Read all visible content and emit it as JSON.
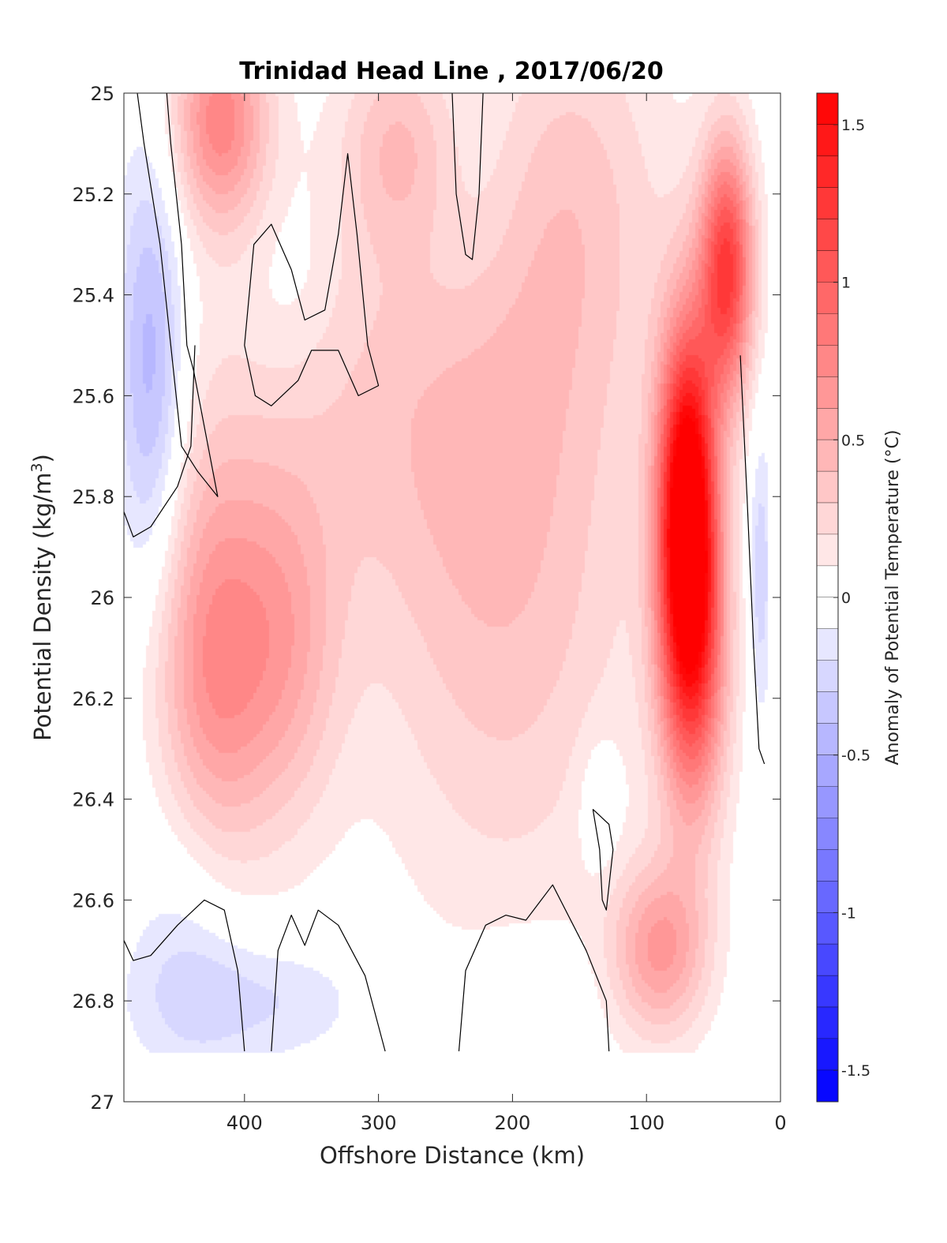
{
  "chart_data": {
    "type": "heatmap",
    "title": "Trinidad Head Line , 2017/06/20",
    "xlabel": "Offshore Distance (km)",
    "ylabel_main": "Potential Density (kg/m",
    "ylabel_sup": "3",
    "ylabel_close": ")",
    "colorbar_label": "Anomaly of Potential Temperature (°C)",
    "x_axis": {
      "reversed": true,
      "lim": [
        0,
        490
      ],
      "ticks": [
        400,
        300,
        200,
        100,
        0
      ],
      "tick_labels": [
        "400",
        "300",
        "200",
        "100",
        "0"
      ]
    },
    "y_axis": {
      "reversed": true,
      "lim": [
        25,
        27
      ],
      "ticks": [
        25,
        25.2,
        25.4,
        25.6,
        25.8,
        26,
        26.2,
        26.4,
        26.6,
        26.8,
        27
      ],
      "tick_labels": [
        "25",
        "25.2",
        "25.4",
        "25.6",
        "25.8",
        "26",
        "26.2",
        "26.4",
        "26.6",
        "26.8",
        "27"
      ]
    },
    "colorbar": {
      "lim": [
        -1.6,
        1.6
      ],
      "ticks": [
        1.5,
        1,
        0.5,
        0,
        -0.5,
        -1,
        -1.5
      ],
      "tick_labels": [
        "1.5",
        "1",
        "0.5",
        "0",
        "-0.5",
        "-1",
        "-1.5"
      ],
      "level_step": 0.1,
      "colormap": "blue-white-red",
      "color_min": "#0000ff",
      "color_mid": "#ffffff",
      "color_max": "#ff0000"
    },
    "data_extent": {
      "x_range": [
        10,
        490
      ],
      "y_range": [
        25,
        26.9
      ]
    },
    "anomaly_features": [
      {
        "x": 70,
        "y": 25.8,
        "value": 1.6,
        "sx": 15,
        "sy": 0.25
      },
      {
        "x": 65,
        "y": 26.1,
        "value": 1.0,
        "sx": 18,
        "sy": 0.25
      },
      {
        "x": 40,
        "y": 25.35,
        "value": 1.2,
        "sx": 14,
        "sy": 0.18
      },
      {
        "x": 90,
        "y": 26.7,
        "value": 0.6,
        "sx": 25,
        "sy": 0.12
      },
      {
        "x": 425,
        "y": 26.15,
        "value": 0.65,
        "sx": 30,
        "sy": 0.3
      },
      {
        "x": 418,
        "y": 25.05,
        "value": 0.75,
        "sx": 25,
        "sy": 0.15
      },
      {
        "x": 370,
        "y": 26.1,
        "value": 0.45,
        "sx": 30,
        "sy": 0.25
      },
      {
        "x": 205,
        "y": 26.0,
        "value": 0.35,
        "sx": 70,
        "sy": 0.45
      },
      {
        "x": 155,
        "y": 25.2,
        "value": 0.3,
        "sx": 50,
        "sy": 0.3
      },
      {
        "x": 300,
        "y": 25.6,
        "value": 0.25,
        "sx": 100,
        "sy": 0.3
      },
      {
        "x": 285,
        "y": 25.1,
        "value": 0.35,
        "sx": 30,
        "sy": 0.15
      },
      {
        "x": 470,
        "y": 25.55,
        "value": -0.5,
        "sx": 18,
        "sy": 0.3
      },
      {
        "x": 365,
        "y": 25.4,
        "value": -0.1,
        "sx": 25,
        "sy": 0.15
      },
      {
        "x": 230,
        "y": 25.2,
        "value": -0.1,
        "sx": 30,
        "sy": 0.2
      },
      {
        "x": 135,
        "y": 26.4,
        "value": -0.15,
        "sx": 12,
        "sy": 0.1
      },
      {
        "x": 430,
        "y": 26.8,
        "value": -0.2,
        "sx": 40,
        "sy": 0.1
      },
      {
        "x": 360,
        "y": 26.8,
        "value": -0.15,
        "sx": 40,
        "sy": 0.08
      },
      {
        "x": 190,
        "y": 26.8,
        "value": -0.15,
        "sx": 30,
        "sy": 0.08
      },
      {
        "x": 15,
        "y": 25.95,
        "value": -0.3,
        "sx": 6,
        "sy": 0.2
      },
      {
        "x": 440,
        "y": 26.6,
        "value": -0.2,
        "sx": 30,
        "sy": 0.2
      }
    ],
    "zero_contours": [
      [
        [
          480,
          25
        ],
        [
          475,
          25.1
        ],
        [
          463,
          25.3
        ],
        [
          455,
          25.5
        ],
        [
          447,
          25.7
        ],
        [
          435,
          25.75
        ],
        [
          420,
          25.8
        ],
        [
          438,
          25.55
        ],
        [
          443,
          25.5
        ],
        [
          447,
          25.3
        ],
        [
          455,
          25.1
        ],
        [
          458,
          25
        ]
      ],
      [
        [
          490,
          25.83
        ],
        [
          483,
          25.88
        ],
        [
          470,
          25.86
        ],
        [
          450,
          25.78
        ],
        [
          440,
          25.7
        ],
        [
          437,
          25.5
        ]
      ],
      [
        [
          400,
          25.5
        ],
        [
          393,
          25.3
        ],
        [
          380,
          25.26
        ],
        [
          365,
          25.35
        ],
        [
          355,
          25.45
        ],
        [
          340,
          25.43
        ],
        [
          330,
          25.28
        ],
        [
          323,
          25.12
        ],
        [
          316,
          25.28
        ],
        [
          308,
          25.5
        ],
        [
          300,
          25.58
        ],
        [
          315,
          25.6
        ],
        [
          330,
          25.51
        ],
        [
          350,
          25.51
        ],
        [
          360,
          25.57
        ],
        [
          380,
          25.62
        ],
        [
          392,
          25.6
        ],
        [
          400,
          25.5
        ]
      ],
      [
        [
          245,
          25.0
        ],
        [
          242,
          25.2
        ],
        [
          235,
          25.32
        ],
        [
          230,
          25.33
        ],
        [
          225,
          25.2
        ],
        [
          222,
          25.0
        ]
      ],
      [
        [
          490,
          26.68
        ],
        [
          483,
          26.72
        ],
        [
          470,
          26.71
        ],
        [
          450,
          26.65
        ],
        [
          430,
          26.6
        ],
        [
          415,
          26.62
        ],
        [
          405,
          26.74
        ],
        [
          400,
          26.9
        ]
      ],
      [
        [
          380,
          26.9
        ],
        [
          375,
          26.7
        ],
        [
          365,
          26.63
        ],
        [
          355,
          26.69
        ],
        [
          345,
          26.62
        ],
        [
          330,
          26.65
        ],
        [
          310,
          26.75
        ],
        [
          295,
          26.9
        ]
      ],
      [
        [
          240,
          26.9
        ],
        [
          235,
          26.74
        ],
        [
          220,
          26.65
        ],
        [
          205,
          26.63
        ],
        [
          190,
          26.64
        ],
        [
          170,
          26.57
        ],
        [
          145,
          26.7
        ],
        [
          130,
          26.8
        ],
        [
          128,
          26.9
        ]
      ],
      [
        [
          140,
          26.42
        ],
        [
          135,
          26.5
        ],
        [
          133,
          26.6
        ],
        [
          130,
          26.62
        ],
        [
          125,
          26.5
        ],
        [
          128,
          26.45
        ],
        [
          140,
          26.42
        ]
      ],
      [
        [
          30,
          25.52
        ],
        [
          25,
          25.8
        ],
        [
          20,
          26.1
        ],
        [
          16,
          26.3
        ],
        [
          12,
          26.33
        ]
      ]
    ]
  }
}
